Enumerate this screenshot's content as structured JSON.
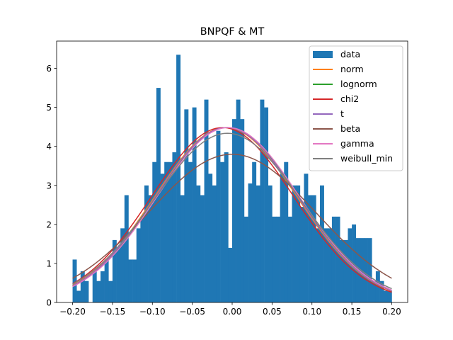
{
  "chart_data": {
    "type": "bar",
    "title": "BNPQF & MT",
    "xlabel": "",
    "ylabel": "",
    "xlim": [
      -0.22,
      0.22
    ],
    "ylim": [
      0,
      6.7
    ],
    "xticks": [
      -0.2,
      -0.15,
      -0.1,
      -0.05,
      0.0,
      0.05,
      0.1,
      0.15,
      0.2
    ],
    "xtick_labels": [
      "−0.20",
      "−0.15",
      "−0.10",
      "−0.05",
      "0.00",
      "0.05",
      "0.10",
      "0.15",
      "0.20"
    ],
    "yticks": [
      0,
      1,
      2,
      3,
      4,
      5,
      6
    ],
    "ytick_labels": [
      "0",
      "1",
      "2",
      "3",
      "4",
      "5",
      "6"
    ],
    "grid": false,
    "legend_position": "top-right",
    "histogram": {
      "name": "data",
      "color": "#1f77b4",
      "bin_start": -0.2,
      "bin_width": 0.005,
      "values": [
        1.1,
        0.3,
        0.8,
        0.55,
        0.0,
        0.8,
        0.55,
        0.8,
        1.1,
        0.55,
        1.6,
        1.4,
        1.9,
        2.75,
        1.1,
        1.1,
        1.9,
        2.2,
        3.0,
        2.75,
        3.6,
        5.5,
        3.3,
        3.6,
        3.6,
        3.85,
        6.35,
        2.75,
        4.95,
        3.6,
        5.0,
        3.0,
        2.75,
        5.2,
        3.3,
        3.0,
        4.4,
        3.6,
        3.85,
        1.4,
        4.7,
        5.2,
        4.7,
        2.2,
        3.05,
        3.6,
        3.0,
        5.2,
        5.0,
        3.0,
        2.2,
        2.2,
        3.3,
        3.6,
        2.2,
        3.0,
        3.0,
        2.45,
        3.3,
        2.75,
        2.75,
        1.9,
        3.0,
        1.9,
        1.9,
        2.2,
        2.2,
        1.6,
        1.6,
        1.9,
        2.0,
        1.65,
        1.65,
        1.65,
        1.65,
        0.55,
        0.8,
        0.55,
        0.3,
        0.3
      ]
    },
    "series": [
      {
        "name": "norm",
        "color": "#ff7f0e",
        "mean": -0.008,
        "std": 0.089,
        "scale": 1.0
      },
      {
        "name": "lognorm",
        "color": "#2ca02c",
        "mean": -0.006,
        "std": 0.089,
        "scale": 1.0
      },
      {
        "name": "chi2",
        "color": "#d62728",
        "mean": -0.012,
        "std": 0.089,
        "scale": 1.0
      },
      {
        "name": "t",
        "color": "#9467bd",
        "mean": -0.007,
        "std": 0.089,
        "scale": 1.0
      },
      {
        "name": "beta",
        "color": "#8c564b",
        "mean": 0.0,
        "std": 0.105,
        "scale": 1.0
      },
      {
        "name": "gamma",
        "color": "#e377c2",
        "mean": -0.005,
        "std": 0.089,
        "scale": 1.0
      },
      {
        "name": "weibull_min",
        "color": "#7f7f7f",
        "mean": -0.006,
        "std": 0.092,
        "scale": 1.0
      }
    ]
  }
}
